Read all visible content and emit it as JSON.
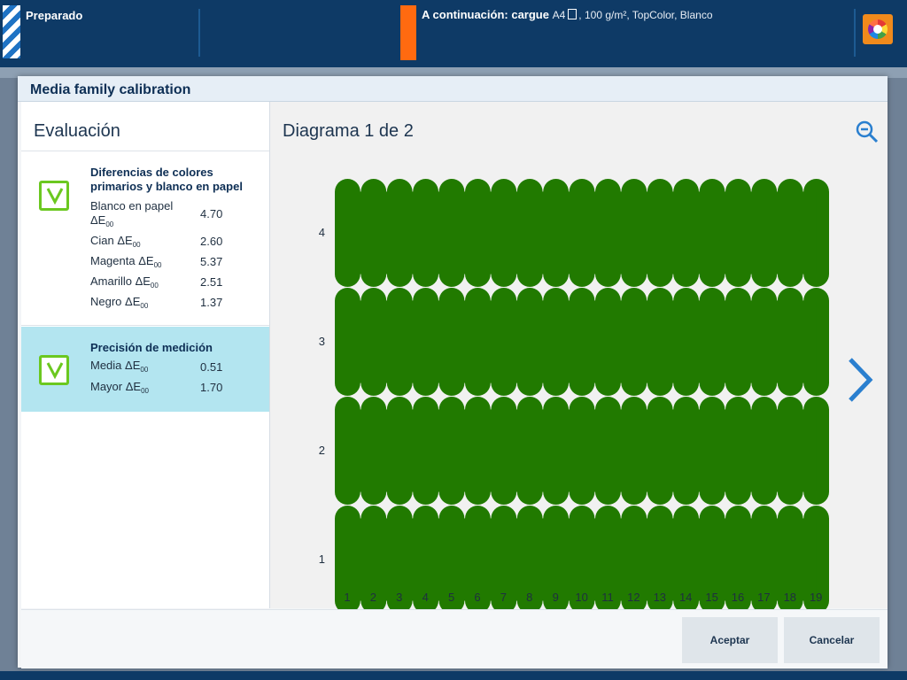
{
  "topbar": {
    "status": "Preparado",
    "next_label": "A continuación: cargue",
    "next_media": "A4",
    "next_details": ", 100 g/m², TopColor, Blanco"
  },
  "dialog": {
    "title": "Media family calibration",
    "left": {
      "heading": "Evaluación",
      "blocks": [
        {
          "title": "Diferencias de colores primarios y blanco en papel",
          "metrics": [
            {
              "label": "Blanco en papel ΔE",
              "sub": "00",
              "value": "4.70"
            },
            {
              "label": "Cian ΔE",
              "sub": "00",
              "value": "2.60"
            },
            {
              "label": "Magenta ΔE",
              "sub": "00",
              "value": "5.37"
            },
            {
              "label": "Amarillo ΔE",
              "sub": "00",
              "value": "2.51"
            },
            {
              "label": "Negro ΔE",
              "sub": "00",
              "value": "1.37"
            }
          ]
        },
        {
          "title": "Precisión de medición",
          "metrics": [
            {
              "label": "Media ΔE",
              "sub": "00",
              "value": "0.51"
            },
            {
              "label": "Mayor ΔE",
              "sub": "00",
              "value": "1.70"
            }
          ]
        }
      ]
    },
    "right": {
      "title": "Diagrama 1 de 2",
      "rows": [
        "4",
        "3",
        "2",
        "1"
      ],
      "columns": [
        "1",
        "2",
        "3",
        "4",
        "5",
        "6",
        "7",
        "8",
        "9",
        "10",
        "11",
        "12",
        "13",
        "14",
        "15",
        "16",
        "17",
        "18",
        "19"
      ],
      "patch_color": "#217a00"
    },
    "buttons": {
      "accept": "Aceptar",
      "cancel": "Cancelar"
    }
  },
  "colors": {
    "topbar": "#0e3a66",
    "accent_orange": "#ff6a10",
    "selected_block": "#b3e5f0",
    "check_green": "#6bc820"
  }
}
